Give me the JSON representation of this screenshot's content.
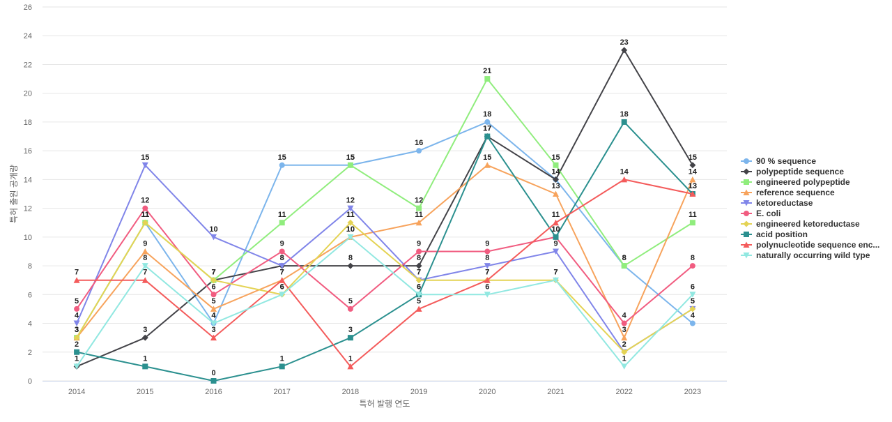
{
  "chart_data": {
    "type": "line",
    "title": "",
    "xlabel": "특허 발행 연도",
    "ylabel": "특허 출원 공개량",
    "x": [
      "2014",
      "2015",
      "2016",
      "2017",
      "2018",
      "2019",
      "2020",
      "2021",
      "2022",
      "2023"
    ],
    "ylim": [
      0,
      26
    ],
    "yticks": [
      0,
      2,
      4,
      6,
      8,
      10,
      12,
      14,
      16,
      18,
      20,
      22,
      24,
      26
    ],
    "grid": true,
    "legend_position": "right",
    "series": [
      {
        "name": "90 % sequence",
        "color": "#7cb5ec",
        "marker": "circle",
        "values": [
          3,
          11,
          4,
          15,
          15,
          16,
          18,
          14,
          8,
          4
        ]
      },
      {
        "name": "polypeptide sequence",
        "color": "#434348",
        "marker": "diamond",
        "values": [
          1,
          3,
          7,
          8,
          8,
          8,
          17,
          14,
          23,
          15
        ]
      },
      {
        "name": "engineered polypeptide",
        "color": "#90ed7d",
        "marker": "square",
        "values": [
          3,
          11,
          7,
          11,
          15,
          12,
          21,
          15,
          8,
          11
        ]
      },
      {
        "name": "reference sequence",
        "color": "#f7a35c",
        "marker": "triangle",
        "values": [
          3,
          9,
          5,
          7,
          10,
          11,
          15,
          13,
          3,
          14
        ]
      },
      {
        "name": "ketoreductase",
        "color": "#8085e9",
        "marker": "triangle-down",
        "values": [
          4,
          15,
          10,
          8,
          12,
          7,
          8,
          9,
          2,
          5
        ]
      },
      {
        "name": "E. coli",
        "color": "#f15c80",
        "marker": "circle",
        "values": [
          5,
          12,
          6,
          9,
          5,
          9,
          9,
          10,
          4,
          8
        ]
      },
      {
        "name": "engineered ketoreductase",
        "color": "#e4d354",
        "marker": "diamond",
        "values": [
          3,
          11,
          7,
          6,
          11,
          7,
          7,
          7,
          2,
          5
        ]
      },
      {
        "name": "acid position",
        "color": "#2b908f",
        "marker": "square",
        "values": [
          2,
          1,
          0,
          1,
          3,
          6,
          17,
          10,
          18,
          13
        ]
      },
      {
        "name": "polynucleotide sequence enc...",
        "color": "#f45b5b",
        "marker": "triangle",
        "values": [
          7,
          7,
          3,
          7,
          1,
          5,
          7,
          11,
          14,
          13
        ]
      },
      {
        "name": "naturally occurring wild type",
        "color": "#91e8e1",
        "marker": "triangle-down",
        "values": [
          1,
          8,
          4,
          6,
          10,
          6,
          6,
          7,
          1,
          6
        ]
      }
    ]
  }
}
